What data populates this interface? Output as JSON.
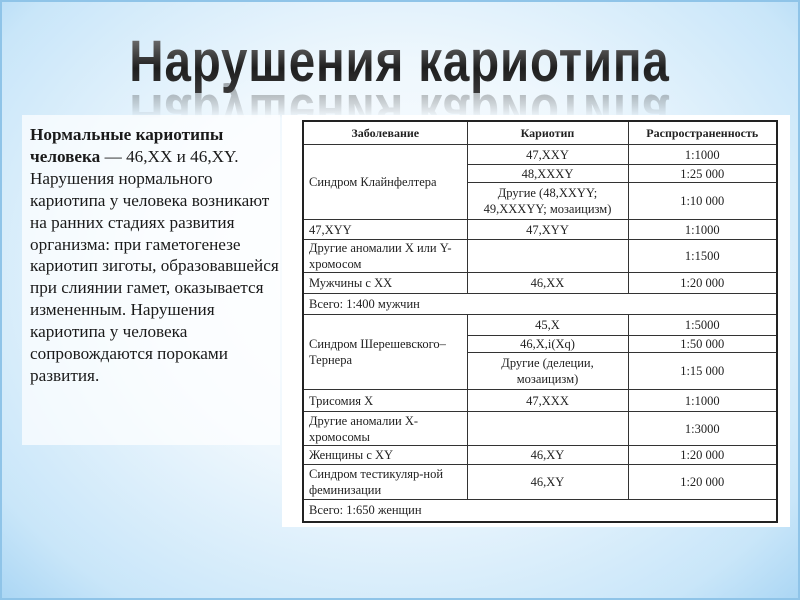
{
  "title": "Нарушения кариотипа",
  "intro": {
    "bold": "Нормальные кариотипы человека",
    "rest": " — 46,XX и 46,XY. Нарушения нормального кариотипа у человека возникают на ранних стадиях развития организма: при гаметогенезе кариотип зиготы, образовавшейся при слиянии гамет, оказывается измененным. Нарушения кариотипа у человека сопровождаются пороками развития."
  },
  "table": {
    "headers": [
      "Заболевание",
      "Кариотип",
      "Распространенность"
    ],
    "male": {
      "klinefelter": "Синдром Клайнфелтера",
      "rows": [
        [
          "47,XXY",
          "1:1000"
        ],
        [
          "48,XXXY",
          "1:25 000"
        ],
        [
          "Другие (48,XXYY; 49,XXXYY; мозаицизм)",
          "1:10 000"
        ]
      ],
      "xyy": [
        "47,XYY",
        "47,XYY",
        "1:1000"
      ],
      "other": [
        "Другие аномалии X или Y-хромосом",
        "",
        "1:1500"
      ],
      "xx": [
        "Мужчины с XX",
        "46,XX",
        "1:20 000"
      ],
      "total": "Всего: 1:400 мужчин"
    },
    "female": {
      "turner": "Синдром Шерешевского–Тернера",
      "rows": [
        [
          "45,X",
          "1:5000"
        ],
        [
          "46,X,i(Xq)",
          "1:50 000"
        ],
        [
          "Другие (делеции, мозаицизм)",
          "1:15 000"
        ]
      ],
      "trisomy": [
        "Трисомия X",
        "47,XXX",
        "1:1000"
      ],
      "other": [
        "Другие аномалии X-хромосомы",
        "",
        "1:3000"
      ],
      "xy": [
        "Женщины с XY",
        "46,XY",
        "1:20 000"
      ],
      "testicular": [
        "Синдром тестикуляр-ной феминизации",
        "46,XY",
        "1:20 000"
      ],
      "total": "Всего: 1:650 женщин"
    }
  }
}
